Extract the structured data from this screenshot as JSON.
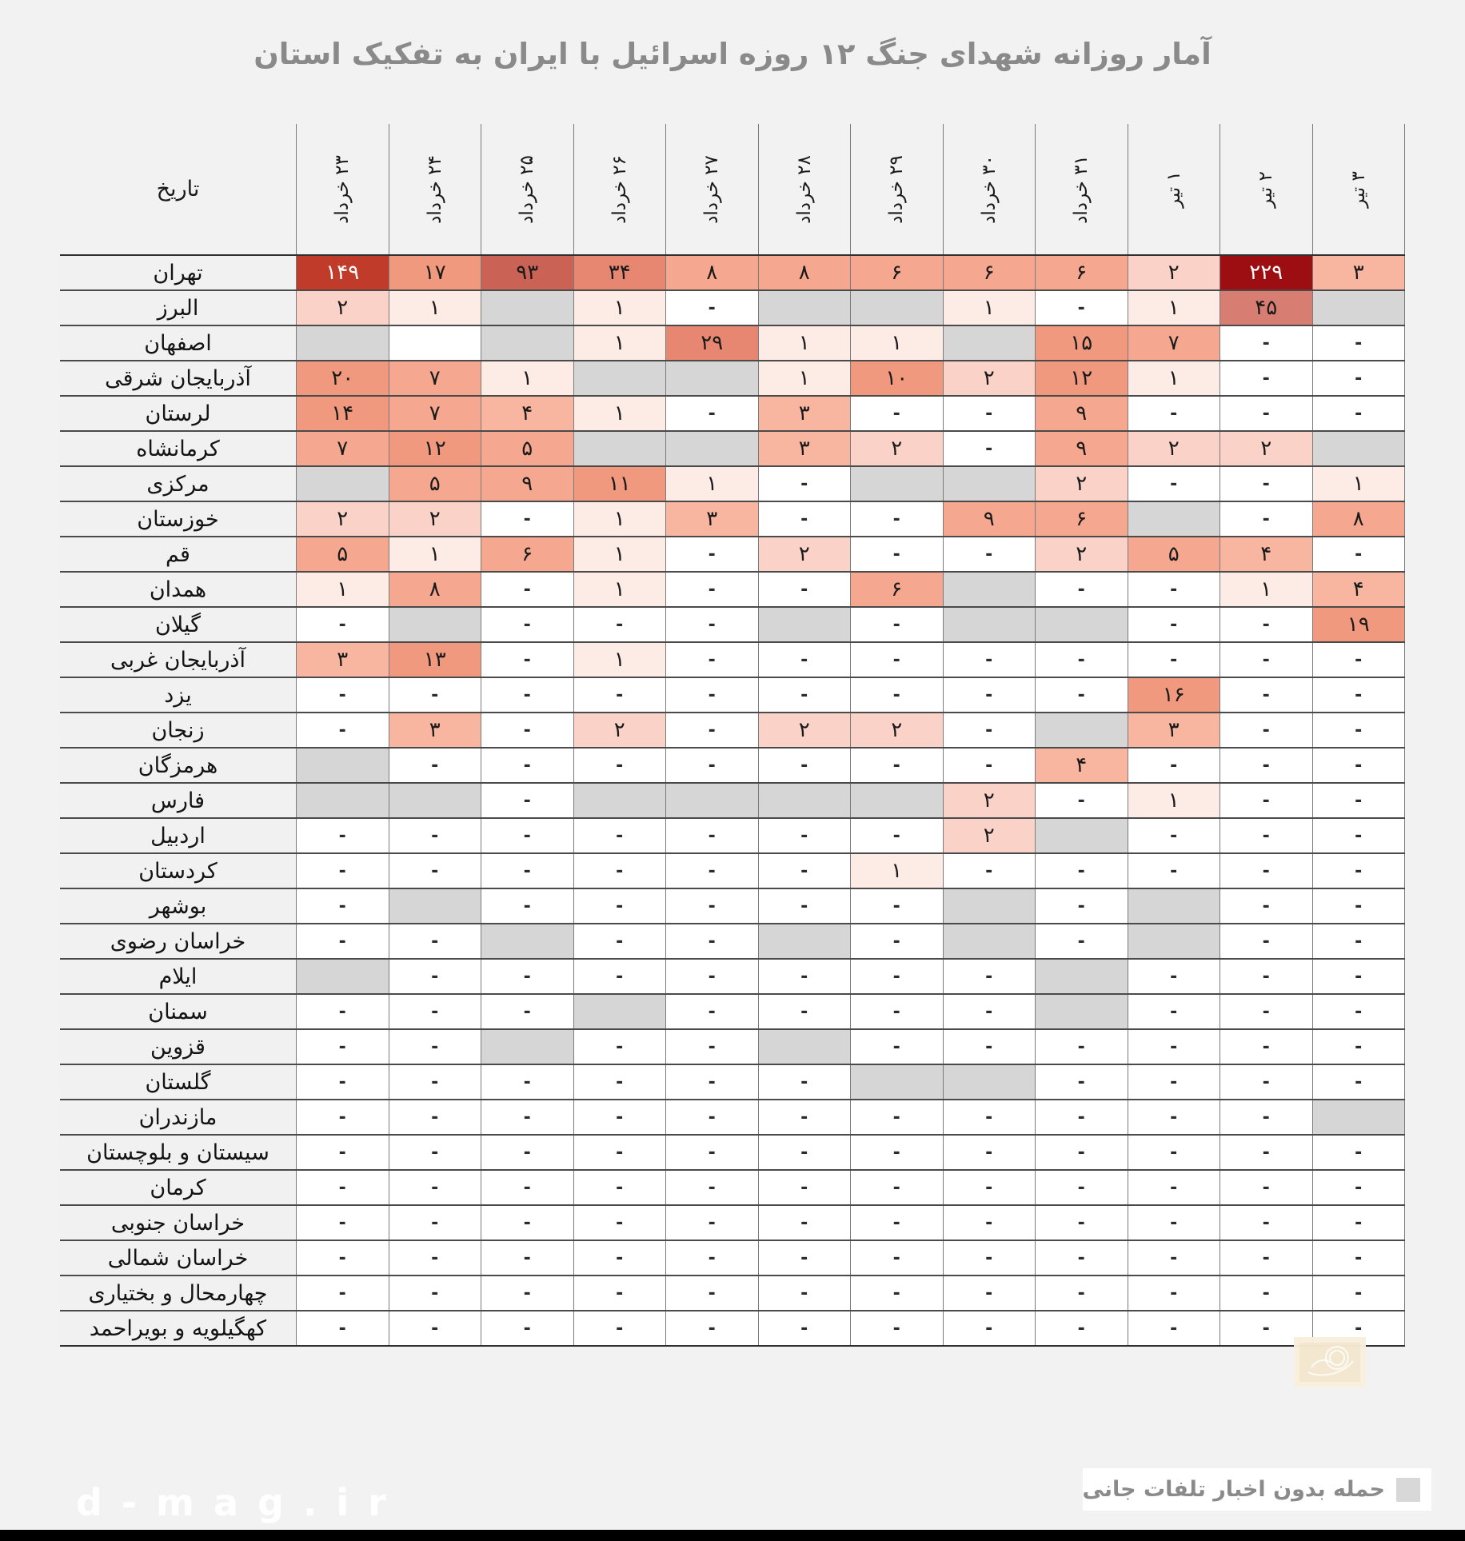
{
  "title": "آمار روزانه شهدای جنگ ۱۲ روزه اسرائیل با ایران به تفکیک استان",
  "table": {
    "corner_label": "تاریخ",
    "date_columns": [
      "۲۳ خرداد",
      "۲۴ خرداد",
      "۲۵ خرداد",
      "۲۶ خرداد",
      "۲۷ خرداد",
      "۲۸ خرداد",
      "۲۹ خرداد",
      "۳۰ خرداد",
      "۳۱ خرداد",
      "۱ تیر",
      "۲ تیر",
      "۳ تیر"
    ],
    "rows": [
      {
        "province": "تهران",
        "cells": [
          "۱۴۹",
          "۱۷",
          "۹۳",
          "۳۴",
          "۸",
          "۸",
          "۶",
          "۶",
          "۶",
          "۲",
          "۲۲۹",
          "۳"
        ]
      },
      {
        "province": "البرز",
        "cells": [
          "۲",
          "۱",
          "G",
          "۱",
          "-",
          "G",
          "G",
          "۱",
          "-",
          "۱",
          "۴۵",
          "G"
        ]
      },
      {
        "province": "اصفهان",
        "cells": [
          "G",
          "",
          "G",
          "۱",
          "۲۹",
          "۱",
          "۱",
          "G",
          "۱۵",
          "۷",
          "-",
          "-"
        ]
      },
      {
        "province": "آذربایجان شرقی",
        "cells": [
          "۲۰",
          "۷",
          "۱",
          "G",
          "G",
          "۱",
          "۱۰",
          "۲",
          "۱۲",
          "۱",
          "-",
          "-"
        ]
      },
      {
        "province": "لرستان",
        "cells": [
          "۱۴",
          "۷",
          "۴",
          "۱",
          "-",
          "۳",
          "-",
          "-",
          "۹",
          "-",
          "-",
          "-"
        ]
      },
      {
        "province": "کرمانشاه",
        "cells": [
          "۷",
          "۱۲",
          "۵",
          "G",
          "G",
          "۳",
          "۲",
          "-",
          "۹",
          "۲",
          "۲",
          "G"
        ]
      },
      {
        "province": "مرکزی",
        "cells": [
          "G",
          "۵",
          "۹",
          "۱۱",
          "۱",
          "-",
          "G",
          "G",
          "۲",
          "-",
          "-",
          "۱"
        ]
      },
      {
        "province": "خوزستان",
        "cells": [
          "۲",
          "۲",
          "-",
          "۱",
          "۳",
          "-",
          "-",
          "۹",
          "۶",
          "G",
          "-",
          "۸"
        ]
      },
      {
        "province": "قم",
        "cells": [
          "۵",
          "۱",
          "۶",
          "۱",
          "-",
          "۲",
          "-",
          "-",
          "۲",
          "۵",
          "۴",
          "-"
        ]
      },
      {
        "province": "همدان",
        "cells": [
          "۱",
          "۸",
          "-",
          "۱",
          "-",
          "-",
          "۶",
          "G",
          "-",
          "-",
          "۱",
          "۴"
        ]
      },
      {
        "province": "گیلان",
        "cells": [
          "-",
          "G",
          "-",
          "-",
          "-",
          "G",
          "-",
          "G",
          "G",
          "-",
          "-",
          "۱۹"
        ]
      },
      {
        "province": "آذربایجان غربی",
        "cells": [
          "۳",
          "۱۳",
          "-",
          "۱",
          "-",
          "-",
          "-",
          "-",
          "-",
          "-",
          "-",
          "-"
        ]
      },
      {
        "province": "یزد",
        "cells": [
          "-",
          "-",
          "-",
          "-",
          "-",
          "-",
          "-",
          "-",
          "-",
          "۱۶",
          "-",
          "-"
        ]
      },
      {
        "province": "زنجان",
        "cells": [
          "-",
          "۳",
          "-",
          "۲",
          "-",
          "۲",
          "۲",
          "-",
          "G",
          "۳",
          "-",
          "-"
        ]
      },
      {
        "province": "هرمزگان",
        "cells": [
          "G",
          "-",
          "-",
          "-",
          "-",
          "-",
          "-",
          "-",
          "۴",
          "-",
          "-",
          "-"
        ]
      },
      {
        "province": "فارس",
        "cells": [
          "G",
          "G",
          "-",
          "G",
          "G",
          "G",
          "G",
          "۲",
          "-",
          "۱",
          "-",
          "-"
        ]
      },
      {
        "province": "اردبیل",
        "cells": [
          "-",
          "-",
          "-",
          "-",
          "-",
          "-",
          "-",
          "۲",
          "G",
          "-",
          "-",
          "-"
        ]
      },
      {
        "province": "کردستان",
        "cells": [
          "-",
          "-",
          "-",
          "-",
          "-",
          "-",
          "۱",
          "-",
          "-",
          "-",
          "-",
          "-"
        ]
      },
      {
        "province": "بوشهر",
        "cells": [
          "-",
          "G",
          "-",
          "-",
          "-",
          "-",
          "-",
          "G",
          "-",
          "G",
          "-",
          "-"
        ]
      },
      {
        "province": "خراسان رضوی",
        "cells": [
          "-",
          "-",
          "G",
          "-",
          "-",
          "G",
          "-",
          "G",
          "-",
          "G",
          "-",
          "-"
        ]
      },
      {
        "province": "ایلام",
        "cells": [
          "G",
          "-",
          "-",
          "-",
          "-",
          "-",
          "-",
          "-",
          "G",
          "-",
          "-",
          "-"
        ]
      },
      {
        "province": "سمنان",
        "cells": [
          "-",
          "-",
          "-",
          "G",
          "-",
          "-",
          "-",
          "-",
          "G",
          "-",
          "-",
          "-"
        ]
      },
      {
        "province": "قزوین",
        "cells": [
          "-",
          "-",
          "G",
          "-",
          "-",
          "G",
          "-",
          "-",
          "-",
          "-",
          "-",
          "-"
        ]
      },
      {
        "province": "گلستان",
        "cells": [
          "-",
          "-",
          "-",
          "-",
          "-",
          "-",
          "G",
          "G",
          "-",
          "-",
          "-",
          "-"
        ]
      },
      {
        "province": "مازندران",
        "cells": [
          "-",
          "-",
          "-",
          "-",
          "-",
          "-",
          "-",
          "-",
          "-",
          "-",
          "-",
          "G"
        ]
      },
      {
        "province": "سیستان و بلوچستان",
        "cells": [
          "-",
          "-",
          "-",
          "-",
          "-",
          "-",
          "-",
          "-",
          "-",
          "-",
          "-",
          "-"
        ]
      },
      {
        "province": "کرمان",
        "cells": [
          "-",
          "-",
          "-",
          "-",
          "-",
          "-",
          "-",
          "-",
          "-",
          "-",
          "-",
          "-"
        ]
      },
      {
        "province": "خراسان جنوبی",
        "cells": [
          "-",
          "-",
          "-",
          "-",
          "-",
          "-",
          "-",
          "-",
          "-",
          "-",
          "-",
          "-"
        ]
      },
      {
        "province": "خراسان شمالی",
        "cells": [
          "-",
          "-",
          "-",
          "-",
          "-",
          "-",
          "-",
          "-",
          "-",
          "-",
          "-",
          "-"
        ]
      },
      {
        "province": "چهارمحال و بختیاری",
        "cells": [
          "-",
          "-",
          "-",
          "-",
          "-",
          "-",
          "-",
          "-",
          "-",
          "-",
          "-",
          "-"
        ]
      },
      {
        "province": "کهگیلویه و بویراحمد",
        "cells": [
          "-",
          "-",
          "-",
          "-",
          "-",
          "-",
          "-",
          "-",
          "-",
          "-",
          "-",
          "-"
        ]
      }
    ]
  },
  "legend": {
    "label": "حمله بدون اخبار تلفات جانی",
    "swatch_color": "#d8d8d8"
  },
  "watermark": "d-mag.ir",
  "colors": {
    "page_bg": "#f2f2f2",
    "label_bg": "#f1f1f1",
    "gray_cell": "#d6d6d6",
    "title_text": "#8a8a8a",
    "row_line": "#4a4a4a",
    "col_line": "#7a7a7a",
    "max_cell": "#9c0e11",
    "high_cell": "#c13b2b"
  },
  "heat_bins": [
    {
      "min": 200,
      "bg": "#9c0e11",
      "fg": "#ffffff"
    },
    {
      "min": 100,
      "bg": "#c13b2b",
      "fg": "#ffffff"
    },
    {
      "min": 60,
      "bg": "#ca6355",
      "fg": "#1a1a1a"
    },
    {
      "min": 40,
      "bg": "#d87d71",
      "fg": "#1a1a1a"
    },
    {
      "min": 25,
      "bg": "#e78772",
      "fg": "#1a1a1a"
    },
    {
      "min": 10,
      "bg": "#f0997f",
      "fg": "#1a1a1a"
    },
    {
      "min": 5,
      "bg": "#f5a88f",
      "fg": "#1a1a1a"
    },
    {
      "min": 3,
      "bg": "#f8b6a1",
      "fg": "#1a1a1a"
    },
    {
      "min": 2,
      "bg": "#fbd2c7",
      "fg": "#1a1a1a"
    },
    {
      "min": 1,
      "bg": "#fdebe6",
      "fg": "#1a1a1a"
    }
  ],
  "chart_data": {
    "type": "heatmap",
    "title": "آمار روزانه شهدای جنگ ۱۲ روزه اسرائیل با ایران به تفکیک استان",
    "x": [
      "۲۳ خرداد",
      "۲۴ خرداد",
      "۲۵ خرداد",
      "۲۶ خرداد",
      "۲۷ خرداد",
      "۲۸ خرداد",
      "۲۹ خرداد",
      "۳۰ خرداد",
      "۳۱ خرداد",
      "۱ تیر",
      "۲ تیر",
      "۳ تیر"
    ],
    "y": [
      "تهران",
      "البرز",
      "اصفهان",
      "آذربایجان شرقی",
      "لرستان",
      "کرمانشاه",
      "مرکزی",
      "خوزستان",
      "قم",
      "همدان",
      "گیلان",
      "آذربایجان غربی",
      "یزد",
      "زنجان",
      "هرمزگان",
      "فارس",
      "اردبیل",
      "کردستان",
      "بوشهر",
      "خراسان رضوی",
      "ایلام",
      "سمنان",
      "قزوین",
      "گلستان",
      "مازندران",
      "سیستان و بلوچستان",
      "کرمان",
      "خراسان جنوبی",
      "خراسان شمالی",
      "چهارمحال و بختیاری",
      "کهگیلویه و بویراحمد"
    ],
    "values": [
      [
        149,
        17,
        93,
        34,
        8,
        8,
        6,
        6,
        6,
        2,
        229,
        3
      ],
      [
        2,
        1,
        "G",
        1,
        "-",
        "G",
        "G",
        1,
        "-",
        1,
        45,
        "G"
      ],
      [
        "G",
        "",
        "G",
        1,
        29,
        1,
        1,
        "G",
        15,
        7,
        "-",
        "-"
      ],
      [
        20,
        7,
        1,
        "G",
        "G",
        1,
        10,
        2,
        12,
        1,
        "-",
        "-"
      ],
      [
        14,
        7,
        4,
        1,
        "-",
        3,
        "-",
        "-",
        9,
        "-",
        "-",
        "-"
      ],
      [
        7,
        12,
        5,
        "G",
        "G",
        3,
        2,
        "-",
        9,
        2,
        2,
        "G"
      ],
      [
        "G",
        5,
        9,
        11,
        1,
        "-",
        "G",
        "G",
        2,
        "-",
        "-",
        1
      ],
      [
        2,
        2,
        "-",
        1,
        3,
        "-",
        "-",
        9,
        6,
        "G",
        "-",
        8
      ],
      [
        5,
        1,
        6,
        1,
        "-",
        2,
        "-",
        "-",
        2,
        5,
        4,
        "-"
      ],
      [
        1,
        8,
        "-",
        1,
        "-",
        "-",
        6,
        "G",
        "-",
        "-",
        1,
        4
      ],
      [
        "-",
        "G",
        "-",
        "-",
        "-",
        "G",
        "-",
        "G",
        "G",
        "-",
        "-",
        19
      ],
      [
        3,
        13,
        "-",
        1,
        "-",
        "-",
        "-",
        "-",
        "-",
        "-",
        "-",
        "-"
      ],
      [
        "-",
        "-",
        "-",
        "-",
        "-",
        "-",
        "-",
        "-",
        "-",
        16,
        "-",
        "-"
      ],
      [
        "-",
        3,
        "-",
        2,
        "-",
        2,
        2,
        "-",
        "G",
        3,
        "-",
        "-"
      ],
      [
        "G",
        "-",
        "-",
        "-",
        "-",
        "-",
        "-",
        "-",
        4,
        "-",
        "-",
        "-"
      ],
      [
        "G",
        "G",
        "-",
        "G",
        "G",
        "G",
        "G",
        2,
        "-",
        1,
        "-",
        "-"
      ],
      [
        "-",
        "-",
        "-",
        "-",
        "-",
        "-",
        "-",
        2,
        "G",
        "-",
        "-",
        "-"
      ],
      [
        "-",
        "-",
        "-",
        "-",
        "-",
        "-",
        1,
        "-",
        "-",
        "-",
        "-",
        "-"
      ],
      [
        "-",
        "G",
        "-",
        "-",
        "-",
        "-",
        "-",
        "G",
        "-",
        "G",
        "-",
        "-"
      ],
      [
        "-",
        "-",
        "G",
        "-",
        "-",
        "G",
        "-",
        "G",
        "-",
        "G",
        "-",
        "-"
      ],
      [
        "G",
        "-",
        "-",
        "-",
        "-",
        "-",
        "-",
        "-",
        "G",
        "-",
        "-",
        "-"
      ],
      [
        "-",
        "-",
        "-",
        "G",
        "-",
        "-",
        "-",
        "-",
        "G",
        "-",
        "-",
        "-"
      ],
      [
        "-",
        "-",
        "G",
        "-",
        "-",
        "G",
        "-",
        "-",
        "-",
        "-",
        "-",
        "-"
      ],
      [
        "-",
        "-",
        "-",
        "-",
        "-",
        "-",
        "G",
        "G",
        "-",
        "-",
        "-",
        "-"
      ],
      [
        "-",
        "-",
        "-",
        "-",
        "-",
        "-",
        "-",
        "-",
        "-",
        "-",
        "-",
        "G"
      ],
      [
        "-",
        "-",
        "-",
        "-",
        "-",
        "-",
        "-",
        "-",
        "-",
        "-",
        "-",
        "-"
      ],
      [
        "-",
        "-",
        "-",
        "-",
        "-",
        "-",
        "-",
        "-",
        "-",
        "-",
        "-",
        "-"
      ],
      [
        "-",
        "-",
        "-",
        "-",
        "-",
        "-",
        "-",
        "-",
        "-",
        "-",
        "-",
        "-"
      ],
      [
        "-",
        "-",
        "-",
        "-",
        "-",
        "-",
        "-",
        "-",
        "-",
        "-",
        "-",
        "-"
      ],
      [
        "-",
        "-",
        "-",
        "-",
        "-",
        "-",
        "-",
        "-",
        "-",
        "-",
        "-",
        "-"
      ],
      [
        "-",
        "-",
        "-",
        "-",
        "-",
        "-",
        "-",
        "-",
        "-",
        "-",
        "-",
        "-"
      ]
    ],
    "gray_token_label": "حمله بدون اخبار تلفات جانی",
    "legend_position": "bottom-right",
    "grid": true
  }
}
